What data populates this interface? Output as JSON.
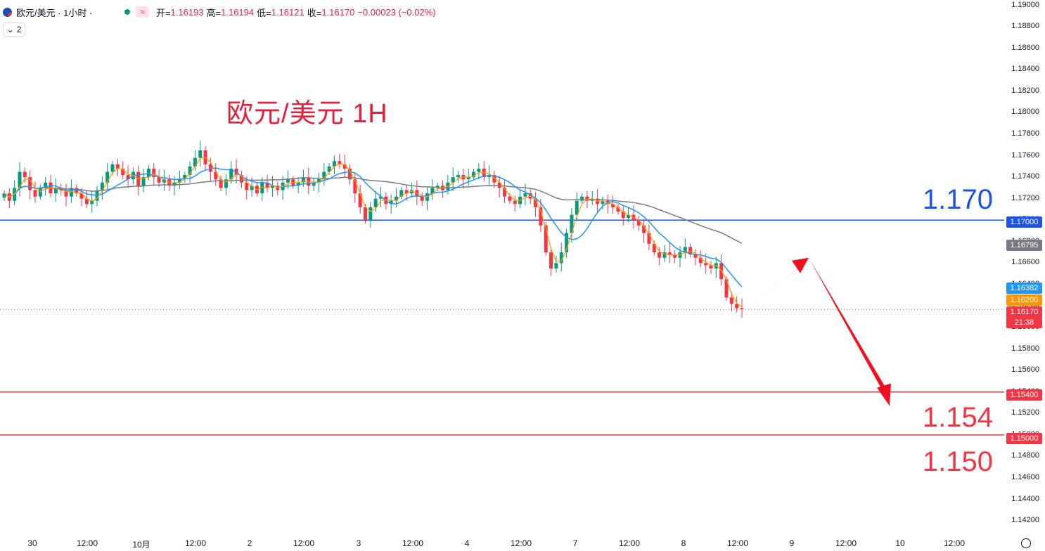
{
  "legend": {
    "symbol": "欧元/美元 · 1小时 ·",
    "badge": "≈",
    "open_label": "开=",
    "open": "1.16193",
    "high_label": "高=",
    "high": "1.16194",
    "low_label": "低=",
    "low": "1.16121",
    "close_label": "收=",
    "close": "1.16170",
    "change": "−0.00023 (−0.02%)",
    "indicators_count": "2"
  },
  "title": "欧元/美元 1H",
  "levels": {
    "upper": "1.170",
    "lower1": "1.154",
    "lower2": "1.150"
  },
  "price_tags": {
    "l1700": "1.17000",
    "ma_slow": "1.16795",
    "ma_fast": "1.16382",
    "ma_mid": "1.16200",
    "last": "1.16170",
    "countdown": "21:38",
    "l1540": "1.15400",
    "l1500": "1.15000"
  },
  "colors": {
    "up": "#089981",
    "down": "#f23645",
    "level_blue": "#1e53e5",
    "level_red": "#f23645",
    "ma_fast": "#2196f3",
    "ma_slow": "#787b86",
    "ma_mid": "#ff9800",
    "arrow": "#f01020"
  },
  "chart_data": {
    "type": "candlestick",
    "timeframe": "1H",
    "y_ticks": [
      "1.19000",
      "1.18800",
      "1.18600",
      "1.18400",
      "1.18200",
      "1.18000",
      "1.17800",
      "1.17600",
      "1.17400",
      "1.17200",
      "1.17000",
      "1.16800",
      "1.16600",
      "1.16400",
      "1.16200",
      "1.16000",
      "1.15800",
      "1.15600",
      "1.15400",
      "1.15200",
      "1.15000",
      "1.14800",
      "1.14600",
      "1.14400",
      "1.14200"
    ],
    "ylim": [
      1.1405,
      1.1905
    ],
    "x_ticks": [
      "30",
      "12:00",
      "10月",
      "12:00",
      "2",
      "12:00",
      "3",
      "12:00",
      "4",
      "12:00",
      "7",
      "12:00",
      "8",
      "12:00",
      "9",
      "12:00",
      "10",
      "12:00"
    ],
    "horizontal_levels": [
      1.17,
      1.154,
      1.15
    ],
    "last_price": 1.1617,
    "ma_values_at_last": {
      "fast": 1.16382,
      "mid": 1.162,
      "slow": 1.16795
    },
    "closes": [
      1.1725,
      1.1718,
      1.173,
      1.1745,
      1.174,
      1.1728,
      1.1722,
      1.173,
      1.1735,
      1.1725,
      1.173,
      1.1728,
      1.1722,
      1.173,
      1.1725,
      1.172,
      1.1715,
      1.1718,
      1.1728,
      1.1735,
      1.1745,
      1.1752,
      1.1748,
      1.1742,
      1.1738,
      1.1745,
      1.1732,
      1.174,
      1.1748,
      1.174,
      1.1735,
      1.1738,
      1.1732,
      1.1735,
      1.1738,
      1.1742,
      1.175,
      1.1758,
      1.1765,
      1.1752,
      1.1745,
      1.1738,
      1.173,
      1.1738,
      1.1748,
      1.1742,
      1.1735,
      1.1728,
      1.1732,
      1.1725,
      1.1735,
      1.173,
      1.1732,
      1.1728,
      1.1735,
      1.1738,
      1.1732,
      1.1735,
      1.174,
      1.1732,
      1.1735,
      1.1738,
      1.1745,
      1.175,
      1.1755,
      1.1752,
      1.1748,
      1.1738,
      1.1725,
      1.1712,
      1.17,
      1.1712,
      1.172,
      1.1722,
      1.1715,
      1.1718,
      1.1722,
      1.1728,
      1.1725,
      1.1728,
      1.1722,
      1.1718,
      1.1725,
      1.173,
      1.1732,
      1.1728,
      1.1735,
      1.174,
      1.1742,
      1.1738,
      1.174,
      1.1745,
      1.1748,
      1.174,
      1.1742,
      1.1735,
      1.173,
      1.1722,
      1.1718,
      1.1715,
      1.1722,
      1.1725,
      1.172,
      1.1712,
      1.1695,
      1.167,
      1.1655,
      1.166,
      1.167,
      1.1688,
      1.1705,
      1.1718,
      1.1722,
      1.1718,
      1.172,
      1.1715,
      1.1718,
      1.1715,
      1.1712,
      1.1708,
      1.1702,
      1.1705,
      1.17,
      1.1695,
      1.1688,
      1.1678,
      1.167,
      1.1665,
      1.167,
      1.1668,
      1.1665,
      1.167,
      1.1675,
      1.1668,
      1.1665,
      1.166,
      1.1658,
      1.1655,
      1.166,
      1.1645,
      1.1628,
      1.1622,
      1.1618,
      1.1617
    ]
  },
  "xaxis": {
    "t30": "30",
    "t1200a": "12:00",
    "oct": "10月",
    "t1200b": "12:00",
    "d2": "2",
    "t1200c": "12:00",
    "d3": "3",
    "t1200d": "12:00",
    "d4": "4",
    "t1200e": "12:00",
    "d7": "7",
    "t1200f": "12:00",
    "d8": "8",
    "t1200g": "12:00",
    "d9": "9",
    "t1200h": "12:00",
    "d10": "10",
    "t1200i": "12:00"
  }
}
